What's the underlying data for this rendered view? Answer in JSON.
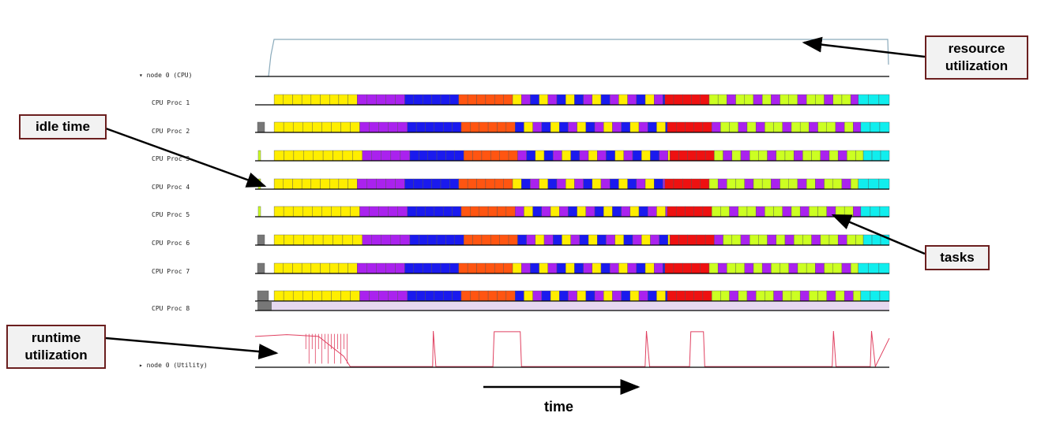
{
  "node_cpu_label": "▾ node 0 (CPU)",
  "node_utility_label": "▸ node 0 (Utility)",
  "proc_labels": [
    "CPU Proc 1",
    "CPU Proc 2",
    "CPU Proc 3",
    "CPU Proc 4",
    "CPU Proc 5",
    "CPU Proc 6",
    "CPU Proc 7",
    "CPU Proc 8"
  ],
  "callouts": {
    "resource": "resource utilization",
    "idle": "idle time",
    "tasks": "tasks",
    "runtime": "runtime utilization"
  },
  "time_label": "time",
  "colors": {
    "yellow": "#ffee00",
    "purple": "#aa22ee",
    "blue": "#1a1aee",
    "orange": "#ff5511",
    "red": "#ee1111",
    "lime": "#ccff22",
    "cyan": "#11eeee",
    "gray": "#777777",
    "util_line": "#e04060",
    "res_line": "#8aaabb",
    "callout_border": "#6b1f1f"
  },
  "phases": [
    {
      "color": "yellow",
      "start": 0.03,
      "end": 0.165,
      "type": "solid"
    },
    {
      "color": "purple",
      "start": 0.165,
      "end": 0.24,
      "type": "solid"
    },
    {
      "color": "blue",
      "start": 0.24,
      "end": 0.325,
      "type": "solid"
    },
    {
      "color": "orange",
      "start": 0.325,
      "end": 0.41,
      "type": "solid"
    },
    {
      "color": "mixed",
      "start": 0.41,
      "end": 0.65,
      "type": "mixed"
    },
    {
      "color": "red",
      "start": 0.65,
      "end": 0.72,
      "type": "solid"
    },
    {
      "color": "lime",
      "start": 0.72,
      "end": 0.955,
      "type": "lime_mix"
    },
    {
      "color": "cyan",
      "start": 0.955,
      "end": 1.0,
      "type": "solid"
    }
  ],
  "runtime_utilization_series": [
    {
      "t": 0.0,
      "v": 0.85
    },
    {
      "t": 0.05,
      "v": 0.9
    },
    {
      "t": 0.1,
      "v": 0.85
    },
    {
      "t": 0.14,
      "v": 0.3
    },
    {
      "t": 0.15,
      "v": 0.02
    },
    {
      "t": 0.28,
      "v": 0.02
    },
    {
      "t": 0.281,
      "v": 1.0
    },
    {
      "t": 0.285,
      "v": 0.02
    },
    {
      "t": 0.375,
      "v": 0.02
    },
    {
      "t": 0.377,
      "v": 0.98
    },
    {
      "t": 0.418,
      "v": 0.98
    },
    {
      "t": 0.42,
      "v": 0.02
    },
    {
      "t": 0.615,
      "v": 0.02
    },
    {
      "t": 0.617,
      "v": 1.0
    },
    {
      "t": 0.622,
      "v": 0.02
    },
    {
      "t": 0.685,
      "v": 0.02
    },
    {
      "t": 0.687,
      "v": 0.98
    },
    {
      "t": 0.707,
      "v": 0.98
    },
    {
      "t": 0.709,
      "v": 0.02
    },
    {
      "t": 0.91,
      "v": 0.02
    },
    {
      "t": 0.912,
      "v": 1.0
    },
    {
      "t": 0.916,
      "v": 0.02
    },
    {
      "t": 0.97,
      "v": 0.02
    },
    {
      "t": 0.972,
      "v": 1.0
    },
    {
      "t": 0.978,
      "v": 0.02
    },
    {
      "t": 1.0,
      "v": 0.8
    }
  ]
}
